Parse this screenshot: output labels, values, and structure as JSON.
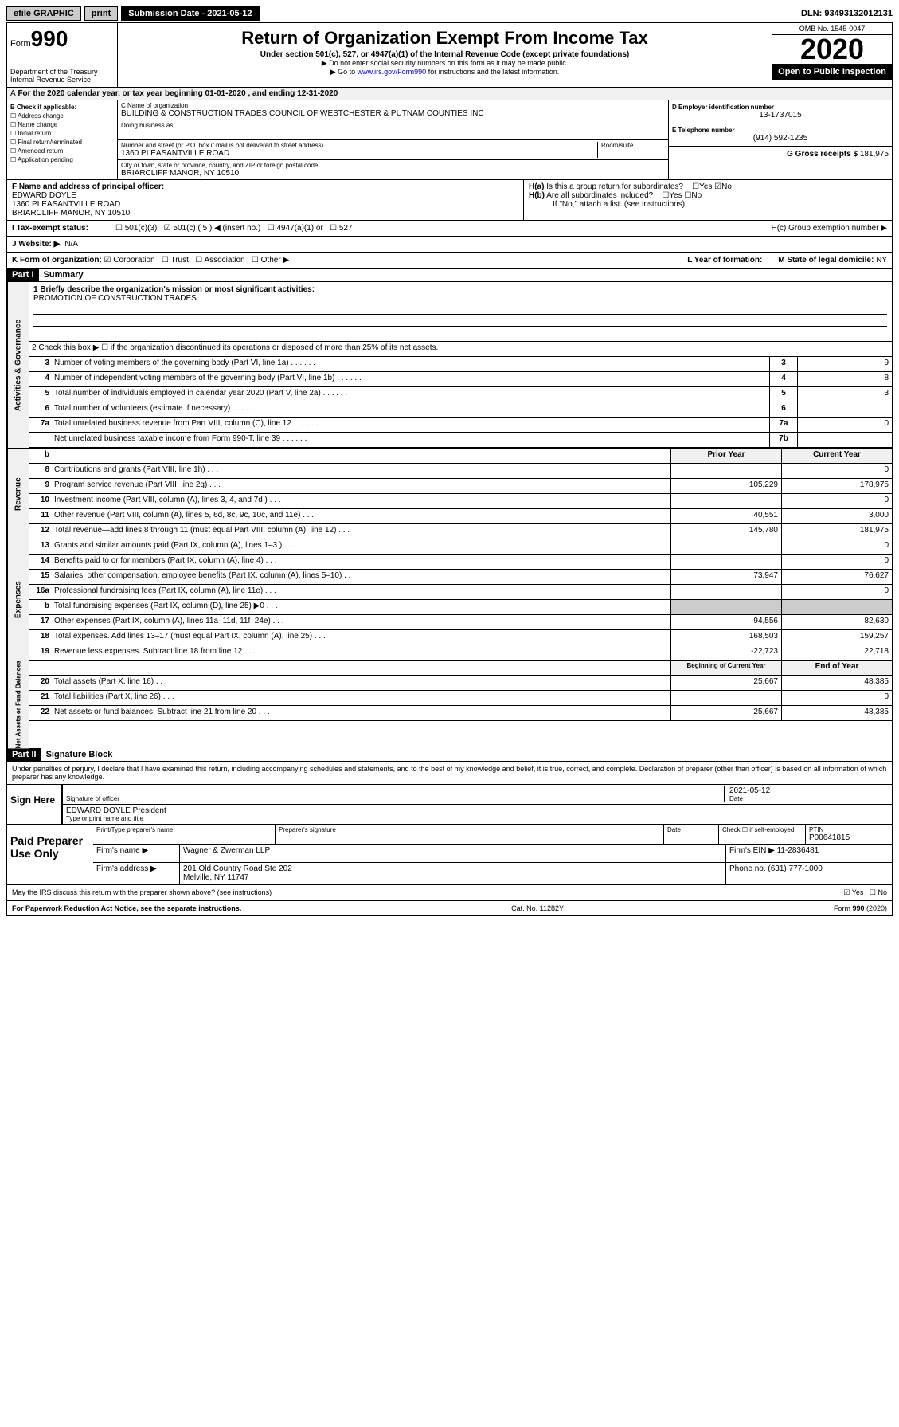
{
  "topbar": {
    "efile": "efile GRAPHIC",
    "print": "print",
    "subdate_label": "Submission Date - 2021-05-12",
    "dln": "DLN: 93493132012131"
  },
  "header": {
    "form_label": "Form",
    "form_num": "990",
    "dept": "Department of the Treasury",
    "irs": "Internal Revenue Service",
    "title": "Return of Organization Exempt From Income Tax",
    "sub1": "Under section 501(c), 527, or 4947(a)(1) of the Internal Revenue Code (except private foundations)",
    "sub2": "▶ Do not enter social security numbers on this form as it may be made public.",
    "sub3": "▶ Go to www.irs.gov/Form990 for instructions and the latest information.",
    "omb": "OMB No. 1545-0047",
    "year": "2020",
    "open": "Open to Public Inspection"
  },
  "period": "For the 2020 calendar year, or tax year beginning 01-01-2020    , and ending 12-31-2020",
  "checkb": {
    "header": "B Check if applicable:",
    "addr": "Address change",
    "name": "Name change",
    "initial": "Initial return",
    "final": "Final return/terminated",
    "amended": "Amended return",
    "app": "Application pending"
  },
  "org": {
    "name_label": "C Name of organization",
    "name": "BUILDING & CONSTRUCTION TRADES COUNCIL OF WESTCHESTER & PUTNAM COUNTIES INC",
    "dba_label": "Doing business as",
    "addr_label": "Number and street (or P.O. box if mail is not delivered to street address)",
    "room_label": "Room/suite",
    "addr": "1360 PLEASANTVILLE ROAD",
    "city_label": "City or town, state or province, country, and ZIP or foreign postal code",
    "city": "BRIARCLIFF MANOR, NY  10510"
  },
  "right": {
    "d_label": "D Employer identification number",
    "d_val": "13-1737015",
    "e_label": "E Telephone number",
    "e_val": "(914) 592-1235",
    "g_label": "G Gross receipts $",
    "g_val": "181,975"
  },
  "f": {
    "label": "F Name and address of principal officer:",
    "name": "EDWARD DOYLE",
    "addr1": "1360 PLEASANTVILLE ROAD",
    "addr2": "BRIARCLIFF MANOR, NY  10510"
  },
  "h": {
    "a": "H(a) Is this a group return for subordinates?",
    "b": "H(b) Are all subordinates included?",
    "b2": "If \"No,\" attach a list. (see instructions)",
    "c": "H(c) Group exemption number ▶",
    "yes": "Yes",
    "no": "No"
  },
  "i": {
    "label": "I  Tax-exempt status:",
    "c3": "501(c)(3)",
    "c5": "501(c) ( 5 ) ◀ (insert no.)",
    "a1": "4947(a)(1) or",
    "527": "527"
  },
  "j": {
    "label": "J  Website: ▶",
    "val": "N/A"
  },
  "k": {
    "label": "K Form of organization:",
    "corp": "Corporation",
    "trust": "Trust",
    "assoc": "Association",
    "other": "Other ▶",
    "l_label": "L Year of formation:",
    "m_label": "M State of legal domicile:",
    "m_val": "NY"
  },
  "part1": {
    "header": "Part I",
    "title": "Summary"
  },
  "summary": {
    "q1": "1  Briefly describe the organization's mission or most significant activities:",
    "mission": "PROMOTION OF CONSTRUCTION TRADES.",
    "q2": "2  Check this box ▶ ☐  if the organization discontinued its operations or disposed of more than 25% of its net assets.",
    "rows_gov": [
      {
        "num": "3",
        "desc": "Number of voting members of the governing body (Part VI, line 1a)",
        "box": "3",
        "val": "9"
      },
      {
        "num": "4",
        "desc": "Number of independent voting members of the governing body (Part VI, line 1b)",
        "box": "4",
        "val": "8"
      },
      {
        "num": "5",
        "desc": "Total number of individuals employed in calendar year 2020 (Part V, line 2a)",
        "box": "5",
        "val": "3"
      },
      {
        "num": "6",
        "desc": "Total number of volunteers (estimate if necessary)",
        "box": "6",
        "val": ""
      },
      {
        "num": "7a",
        "desc": "Total unrelated business revenue from Part VIII, column (C), line 12",
        "box": "7a",
        "val": "0"
      },
      {
        "num": "",
        "desc": "Net unrelated business taxable income from Form 990-T, line 39",
        "box": "7b",
        "val": ""
      }
    ],
    "col_hdr": {
      "b": "b",
      "prior": "Prior Year",
      "current": "Current Year"
    },
    "rows_rev": [
      {
        "num": "8",
        "desc": "Contributions and grants (Part VIII, line 1h)",
        "prior": "",
        "current": "0"
      },
      {
        "num": "9",
        "desc": "Program service revenue (Part VIII, line 2g)",
        "prior": "105,229",
        "current": "178,975"
      },
      {
        "num": "10",
        "desc": "Investment income (Part VIII, column (A), lines 3, 4, and 7d )",
        "prior": "",
        "current": "0"
      },
      {
        "num": "11",
        "desc": "Other revenue (Part VIII, column (A), lines 5, 6d, 8c, 9c, 10c, and 11e)",
        "prior": "40,551",
        "current": "3,000"
      },
      {
        "num": "12",
        "desc": "Total revenue—add lines 8 through 11 (must equal Part VIII, column (A), line 12)",
        "prior": "145,780",
        "current": "181,975"
      }
    ],
    "rows_exp": [
      {
        "num": "13",
        "desc": "Grants and similar amounts paid (Part IX, column (A), lines 1–3 )",
        "prior": "",
        "current": "0"
      },
      {
        "num": "14",
        "desc": "Benefits paid to or for members (Part IX, column (A), line 4)",
        "prior": "",
        "current": "0"
      },
      {
        "num": "15",
        "desc": "Salaries, other compensation, employee benefits (Part IX, column (A), lines 5–10)",
        "prior": "73,947",
        "current": "76,627"
      },
      {
        "num": "16a",
        "desc": "Professional fundraising fees (Part IX, column (A), line 11e)",
        "prior": "",
        "current": "0"
      },
      {
        "num": "b",
        "desc": "Total fundraising expenses (Part IX, column (D), line 25) ▶0",
        "prior": "",
        "current": ""
      },
      {
        "num": "17",
        "desc": "Other expenses (Part IX, column (A), lines 11a–11d, 11f–24e)",
        "prior": "94,556",
        "current": "82,630"
      },
      {
        "num": "18",
        "desc": "Total expenses. Add lines 13–17 (must equal Part IX, column (A), line 25)",
        "prior": "168,503",
        "current": "159,257"
      },
      {
        "num": "19",
        "desc": "Revenue less expenses. Subtract line 18 from line 12",
        "prior": "-22,723",
        "current": "22,718"
      }
    ],
    "col_hdr2": {
      "prior": "Beginning of Current Year",
      "current": "End of Year"
    },
    "rows_net": [
      {
        "num": "20",
        "desc": "Total assets (Part X, line 16)",
        "prior": "25,667",
        "current": "48,385"
      },
      {
        "num": "21",
        "desc": "Total liabilities (Part X, line 26)",
        "prior": "",
        "current": "0"
      },
      {
        "num": "22",
        "desc": "Net assets or fund balances. Subtract line 21 from line 20",
        "prior": "25,667",
        "current": "48,385"
      }
    ]
  },
  "vert": {
    "gov": "Activities & Governance",
    "rev": "Revenue",
    "exp": "Expenses",
    "net": "Net Assets or Fund Balances"
  },
  "part2": {
    "header": "Part II",
    "title": "Signature Block"
  },
  "perjury": "Under penalties of perjury, I declare that I have examined this return, including accompanying schedules and statements, and to the best of my knowledge and belief, it is true, correct, and complete. Declaration of preparer (other than officer) is based on all information of which preparer has any knowledge.",
  "sign": {
    "here": "Sign Here",
    "sig_label": "Signature of officer",
    "date": "2021-05-12",
    "date_label": "Date",
    "name": "EDWARD DOYLE President",
    "name_label": "Type or print name and title"
  },
  "paid": {
    "title": "Paid Preparer Use Only",
    "h1": "Print/Type preparer's name",
    "h2": "Preparer's signature",
    "h3": "Date",
    "h4": "Check ☐ if self-employed",
    "h5": "PTIN",
    "ptin": "P00641815",
    "firm_label": "Firm's name    ▶",
    "firm": "Wagner & Zwerman LLP",
    "ein_label": "Firm's EIN ▶",
    "ein": "11-2836481",
    "addr_label": "Firm's address ▶",
    "addr": "201 Old Country Road Ste 202",
    "addr2": "Melville, NY  11747",
    "phone_label": "Phone no.",
    "phone": "(631) 777-1000"
  },
  "discuss": {
    "text": "May the IRS discuss this return with the preparer shown above? (see instructions)",
    "yes": "Yes",
    "no": "No"
  },
  "footer": {
    "left": "For Paperwork Reduction Act Notice, see the separate instructions.",
    "mid": "Cat. No. 11282Y",
    "right": "Form 990 (2020)"
  }
}
